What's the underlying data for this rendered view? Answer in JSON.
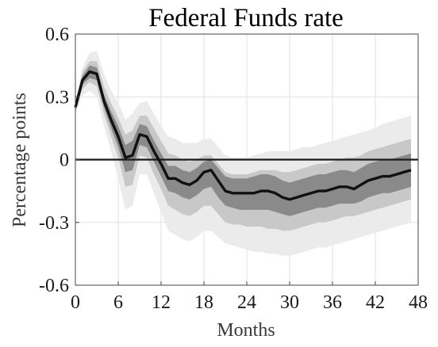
{
  "chart_data": {
    "type": "area",
    "title": "Federal Funds rate",
    "xlabel": "Months",
    "ylabel": "Percentage points",
    "xlim": [
      0,
      48
    ],
    "ylim": [
      -0.6,
      0.6
    ],
    "xticks": [
      0,
      6,
      12,
      18,
      24,
      30,
      36,
      42,
      48
    ],
    "yticks": [
      0.6,
      0.3,
      0,
      -0.3,
      -0.6
    ],
    "xtick_labels": [
      "0",
      "6",
      "12",
      "18",
      "24",
      "30",
      "36",
      "42",
      "48"
    ],
    "ytick_labels": [
      "0.6",
      "0.3",
      "0",
      "-0.3",
      "-0.6"
    ],
    "grid": true,
    "zero_line": true,
    "colors": {
      "band_outer": "#ebebeb",
      "band_mid": "#c8c8c8",
      "band_inner": "#8a8a8a",
      "median": "#111111"
    },
    "x": [
      0,
      1,
      2,
      3,
      4,
      5,
      6,
      7,
      8,
      9,
      10,
      11,
      12,
      13,
      14,
      15,
      16,
      17,
      18,
      19,
      20,
      21,
      22,
      23,
      24,
      25,
      26,
      27,
      28,
      29,
      30,
      31,
      32,
      33,
      34,
      35,
      36,
      37,
      38,
      39,
      40,
      41,
      42,
      43,
      44,
      45,
      46,
      47
    ],
    "median": [
      0.25,
      0.38,
      0.42,
      0.41,
      0.28,
      0.19,
      0.11,
      0.01,
      0.02,
      0.12,
      0.11,
      0.04,
      -0.02,
      -0.09,
      -0.09,
      -0.11,
      -0.12,
      -0.1,
      -0.06,
      -0.05,
      -0.1,
      -0.15,
      -0.16,
      -0.16,
      -0.16,
      -0.16,
      -0.15,
      -0.15,
      -0.16,
      -0.18,
      -0.19,
      -0.18,
      -0.17,
      -0.16,
      -0.15,
      -0.15,
      -0.14,
      -0.13,
      -0.13,
      -0.14,
      -0.12,
      -0.1,
      -0.09,
      -0.08,
      -0.08,
      -0.07,
      -0.06,
      -0.05
    ],
    "bands": [
      {
        "level": "outer",
        "lower": [
          0.22,
          0.31,
          0.33,
          0.3,
          0.16,
          0.04,
          -0.09,
          -0.24,
          -0.22,
          -0.07,
          -0.07,
          -0.16,
          -0.25,
          -0.34,
          -0.36,
          -0.38,
          -0.39,
          -0.37,
          -0.34,
          -0.34,
          -0.37,
          -0.4,
          -0.41,
          -0.42,
          -0.43,
          -0.44,
          -0.44,
          -0.45,
          -0.45,
          -0.46,
          -0.46,
          -0.45,
          -0.44,
          -0.43,
          -0.42,
          -0.42,
          -0.41,
          -0.4,
          -0.39,
          -0.38,
          -0.37,
          -0.36,
          -0.35,
          -0.34,
          -0.33,
          -0.32,
          -0.31,
          -0.3
        ],
        "upper": [
          0.28,
          0.44,
          0.51,
          0.52,
          0.41,
          0.33,
          0.27,
          0.19,
          0.22,
          0.27,
          0.28,
          0.22,
          0.16,
          0.11,
          0.1,
          0.08,
          0.08,
          0.08,
          0.1,
          0.1,
          0.06,
          0.02,
          0.01,
          0.01,
          0.01,
          0.02,
          0.03,
          0.04,
          0.04,
          0.04,
          0.04,
          0.05,
          0.06,
          0.06,
          0.07,
          0.08,
          0.09,
          0.1,
          0.11,
          0.12,
          0.13,
          0.14,
          0.15,
          0.17,
          0.18,
          0.19,
          0.2,
          0.21
        ]
      },
      {
        "level": "mid",
        "lower": [
          0.23,
          0.34,
          0.37,
          0.35,
          0.22,
          0.11,
          0.01,
          -0.13,
          -0.12,
          0.02,
          0.01,
          -0.07,
          -0.14,
          -0.22,
          -0.24,
          -0.26,
          -0.27,
          -0.25,
          -0.22,
          -0.22,
          -0.26,
          -0.3,
          -0.31,
          -0.31,
          -0.32,
          -0.32,
          -0.32,
          -0.33,
          -0.33,
          -0.34,
          -0.34,
          -0.33,
          -0.32,
          -0.31,
          -0.3,
          -0.3,
          -0.29,
          -0.28,
          -0.27,
          -0.27,
          -0.26,
          -0.25,
          -0.24,
          -0.23,
          -0.22,
          -0.21,
          -0.2,
          -0.19
        ],
        "upper": [
          0.27,
          0.42,
          0.47,
          0.47,
          0.35,
          0.27,
          0.2,
          0.12,
          0.14,
          0.21,
          0.21,
          0.15,
          0.09,
          0.03,
          0.02,
          0.0,
          -0.01,
          0.0,
          0.02,
          0.02,
          -0.02,
          -0.06,
          -0.07,
          -0.07,
          -0.07,
          -0.06,
          -0.05,
          -0.05,
          -0.05,
          -0.06,
          -0.06,
          -0.05,
          -0.04,
          -0.03,
          -0.02,
          -0.02,
          -0.01,
          0.0,
          0.01,
          0.01,
          0.02,
          0.04,
          0.05,
          0.06,
          0.07,
          0.08,
          0.09,
          0.1
        ]
      },
      {
        "level": "inner",
        "lower": [
          0.24,
          0.36,
          0.39,
          0.38,
          0.25,
          0.15,
          0.06,
          -0.06,
          -0.05,
          0.07,
          0.06,
          -0.01,
          -0.08,
          -0.15,
          -0.16,
          -0.18,
          -0.19,
          -0.17,
          -0.14,
          -0.13,
          -0.18,
          -0.22,
          -0.23,
          -0.24,
          -0.24,
          -0.24,
          -0.24,
          -0.24,
          -0.25,
          -0.26,
          -0.27,
          -0.26,
          -0.25,
          -0.24,
          -0.23,
          -0.23,
          -0.22,
          -0.21,
          -0.21,
          -0.21,
          -0.2,
          -0.18,
          -0.17,
          -0.16,
          -0.16,
          -0.15,
          -0.14,
          -0.13
        ],
        "upper": [
          0.26,
          0.4,
          0.45,
          0.44,
          0.31,
          0.23,
          0.16,
          0.07,
          0.09,
          0.17,
          0.16,
          0.09,
          0.03,
          -0.03,
          -0.03,
          -0.05,
          -0.06,
          -0.04,
          -0.01,
          0.0,
          -0.04,
          -0.08,
          -0.09,
          -0.09,
          -0.09,
          -0.08,
          -0.07,
          -0.07,
          -0.08,
          -0.1,
          -0.11,
          -0.1,
          -0.09,
          -0.08,
          -0.07,
          -0.07,
          -0.06,
          -0.05,
          -0.05,
          -0.06,
          -0.04,
          -0.02,
          -0.01,
          0.0,
          0.0,
          0.01,
          0.02,
          0.03
        ]
      }
    ]
  }
}
